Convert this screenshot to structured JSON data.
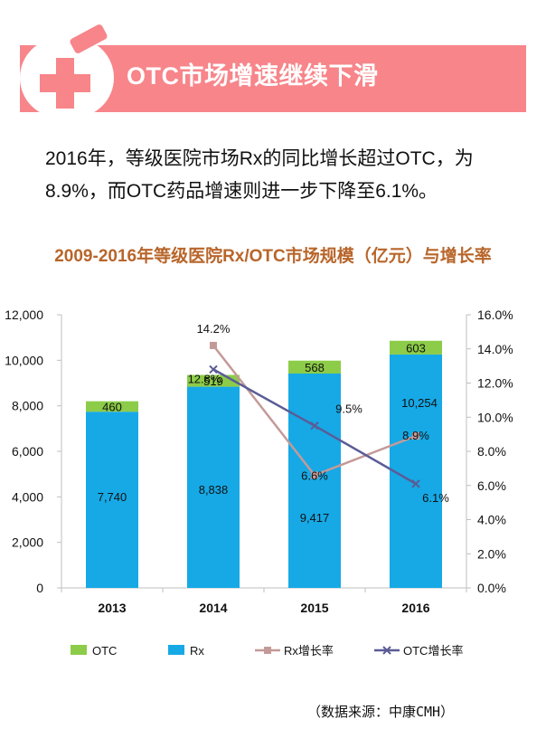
{
  "banner": {
    "title": "OTC市场增速继续下滑",
    "icon": "medical-cross-icon"
  },
  "intro": {
    "text": "2016年，等级医院市场Rx的同比增长超过OTC，为8.9%，而OTC药品增速则进一步下降至6.1%。"
  },
  "source": "（数据来源：中康CMH）",
  "chart_data": {
    "type": "bar",
    "stacked": true,
    "title": "2009-2016年等级医院Rx/OTC市场规模（亿元）与增长率",
    "categories": [
      "2013",
      "2014",
      "2015",
      "2016"
    ],
    "series": [
      {
        "name": "Rx",
        "kind": "bar",
        "axis": "left",
        "color": "#16a9e6",
        "values": [
          7740,
          8838,
          9417,
          10254
        ],
        "labels": [
          "7,740",
          "8,838",
          "9,417",
          "10,254"
        ]
      },
      {
        "name": "OTC",
        "kind": "bar",
        "axis": "left",
        "color": "#8ccc48",
        "values": [
          460,
          519,
          568,
          603
        ],
        "labels": [
          "460",
          "519",
          "568",
          "603"
        ]
      },
      {
        "name": "Rx增长率",
        "kind": "line",
        "axis": "right",
        "color": "#c49a98",
        "marker": "square",
        "values": [
          null,
          14.2,
          6.6,
          8.9
        ],
        "labels": [
          "",
          "14.2%",
          "6.6%",
          "8.9%"
        ]
      },
      {
        "name": "OTC增长率",
        "kind": "line",
        "axis": "right",
        "color": "#5b5c96",
        "marker": "x",
        "values": [
          null,
          12.8,
          9.5,
          6.1
        ],
        "labels": [
          "",
          "12.8%",
          "9.5%",
          "6.1%"
        ]
      }
    ],
    "ylim": [
      0,
      12000
    ],
    "y_ticks": [
      "0",
      "2,000",
      "4,000",
      "6,000",
      "8,000",
      "10,000",
      "12,000"
    ],
    "y2lim": [
      0,
      16
    ],
    "y2_ticks": [
      "0.0%",
      "2.0%",
      "4.0%",
      "6.0%",
      "8.0%",
      "10.0%",
      "12.0%",
      "14.0%",
      "16.0%"
    ],
    "grid": false,
    "legend_position": "bottom",
    "legend": [
      "OTC",
      "Rx",
      "Rx增长率",
      "OTC增长率"
    ]
  }
}
